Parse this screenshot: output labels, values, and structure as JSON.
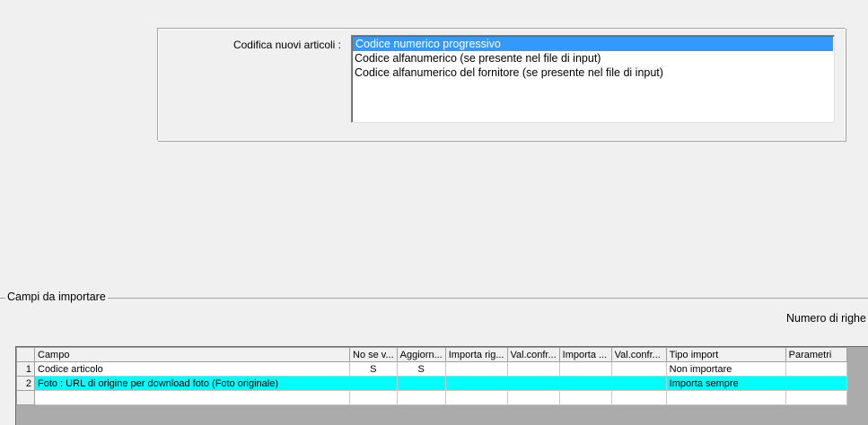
{
  "codifica": {
    "label": "Codifica nuovi articoli :",
    "options": [
      "Codice numerico progressivo",
      "Codice alfanumerico (se presente nel file di input)",
      "Codice alfanumerico del fornitore (se presente nel file di input)"
    ],
    "selected": "Codice numerico progressivo"
  },
  "campi": {
    "title": "Campi da importare",
    "numero_righe_label": "Numero di righe",
    "columns": [
      "",
      "Campo",
      "No se v...",
      "Aggiorn...",
      "Importa rig...",
      "Val.confr...",
      "Importa ...",
      "Val.confr...",
      "Tipo import",
      "Parametri"
    ],
    "rows": [
      [
        "1",
        "Codice articolo",
        "S",
        "S",
        "",
        "",
        "",
        "",
        "Non importare",
        ""
      ],
      [
        "2",
        "Foto : URL di origine per download foto (Foto originale)",
        "",
        "",
        "",
        "",
        "",
        "",
        "Importa sempre",
        ""
      ],
      [
        "",
        "",
        "",
        "",
        "",
        "",
        "",
        "",
        "",
        ""
      ]
    ],
    "highlight_color": "#00ffff",
    "selection_color": "#3399ff"
  }
}
